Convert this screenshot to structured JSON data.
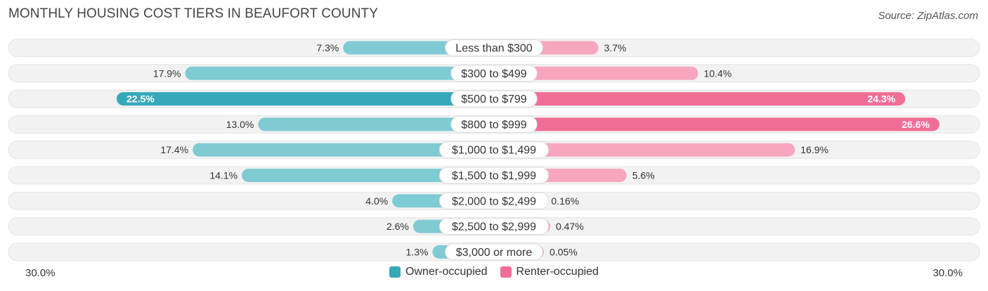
{
  "title": "MONTHLY HOUSING COST TIERS IN BEAUFORT COUNTY",
  "source": "Source: ZipAtlas.com",
  "colors": {
    "owner": "#35a9b9",
    "owner_light": "#7fcbd4",
    "renter": "#f06e95",
    "renter_light": "#f7a6bd",
    "row_bg": "#f2f2f2"
  },
  "chart_data": {
    "type": "bar",
    "orientation": "horizontal-diverging",
    "title": "MONTHLY HOUSING COST TIERS IN BEAUFORT COUNTY",
    "categories": [
      "Less than $300",
      "$300 to $499",
      "$500 to $799",
      "$800 to $999",
      "$1,000 to $1,499",
      "$1,500 to $1,999",
      "$2,000 to $2,499",
      "$2,500 to $2,999",
      "$3,000 or more"
    ],
    "series": [
      {
        "name": "Owner-occupied",
        "values": [
          7.3,
          17.9,
          22.5,
          13.0,
          17.4,
          14.1,
          4.0,
          2.6,
          1.3
        ],
        "labels": [
          "7.3%",
          "17.9%",
          "22.5%",
          "13.0%",
          "17.4%",
          "14.1%",
          "4.0%",
          "2.6%",
          "1.3%"
        ]
      },
      {
        "name": "Renter-occupied",
        "values": [
          3.7,
          10.4,
          24.3,
          26.6,
          16.9,
          5.6,
          0.16,
          0.47,
          0.05
        ],
        "labels": [
          "3.7%",
          "10.4%",
          "24.3%",
          "26.6%",
          "16.9%",
          "5.6%",
          "0.16%",
          "0.47%",
          "0.05%"
        ]
      }
    ],
    "xlim": [
      -30.0,
      30.0
    ],
    "axis_labels": {
      "left": "30.0%",
      "right": "30.0%"
    },
    "legend_position": "bottom-center"
  }
}
